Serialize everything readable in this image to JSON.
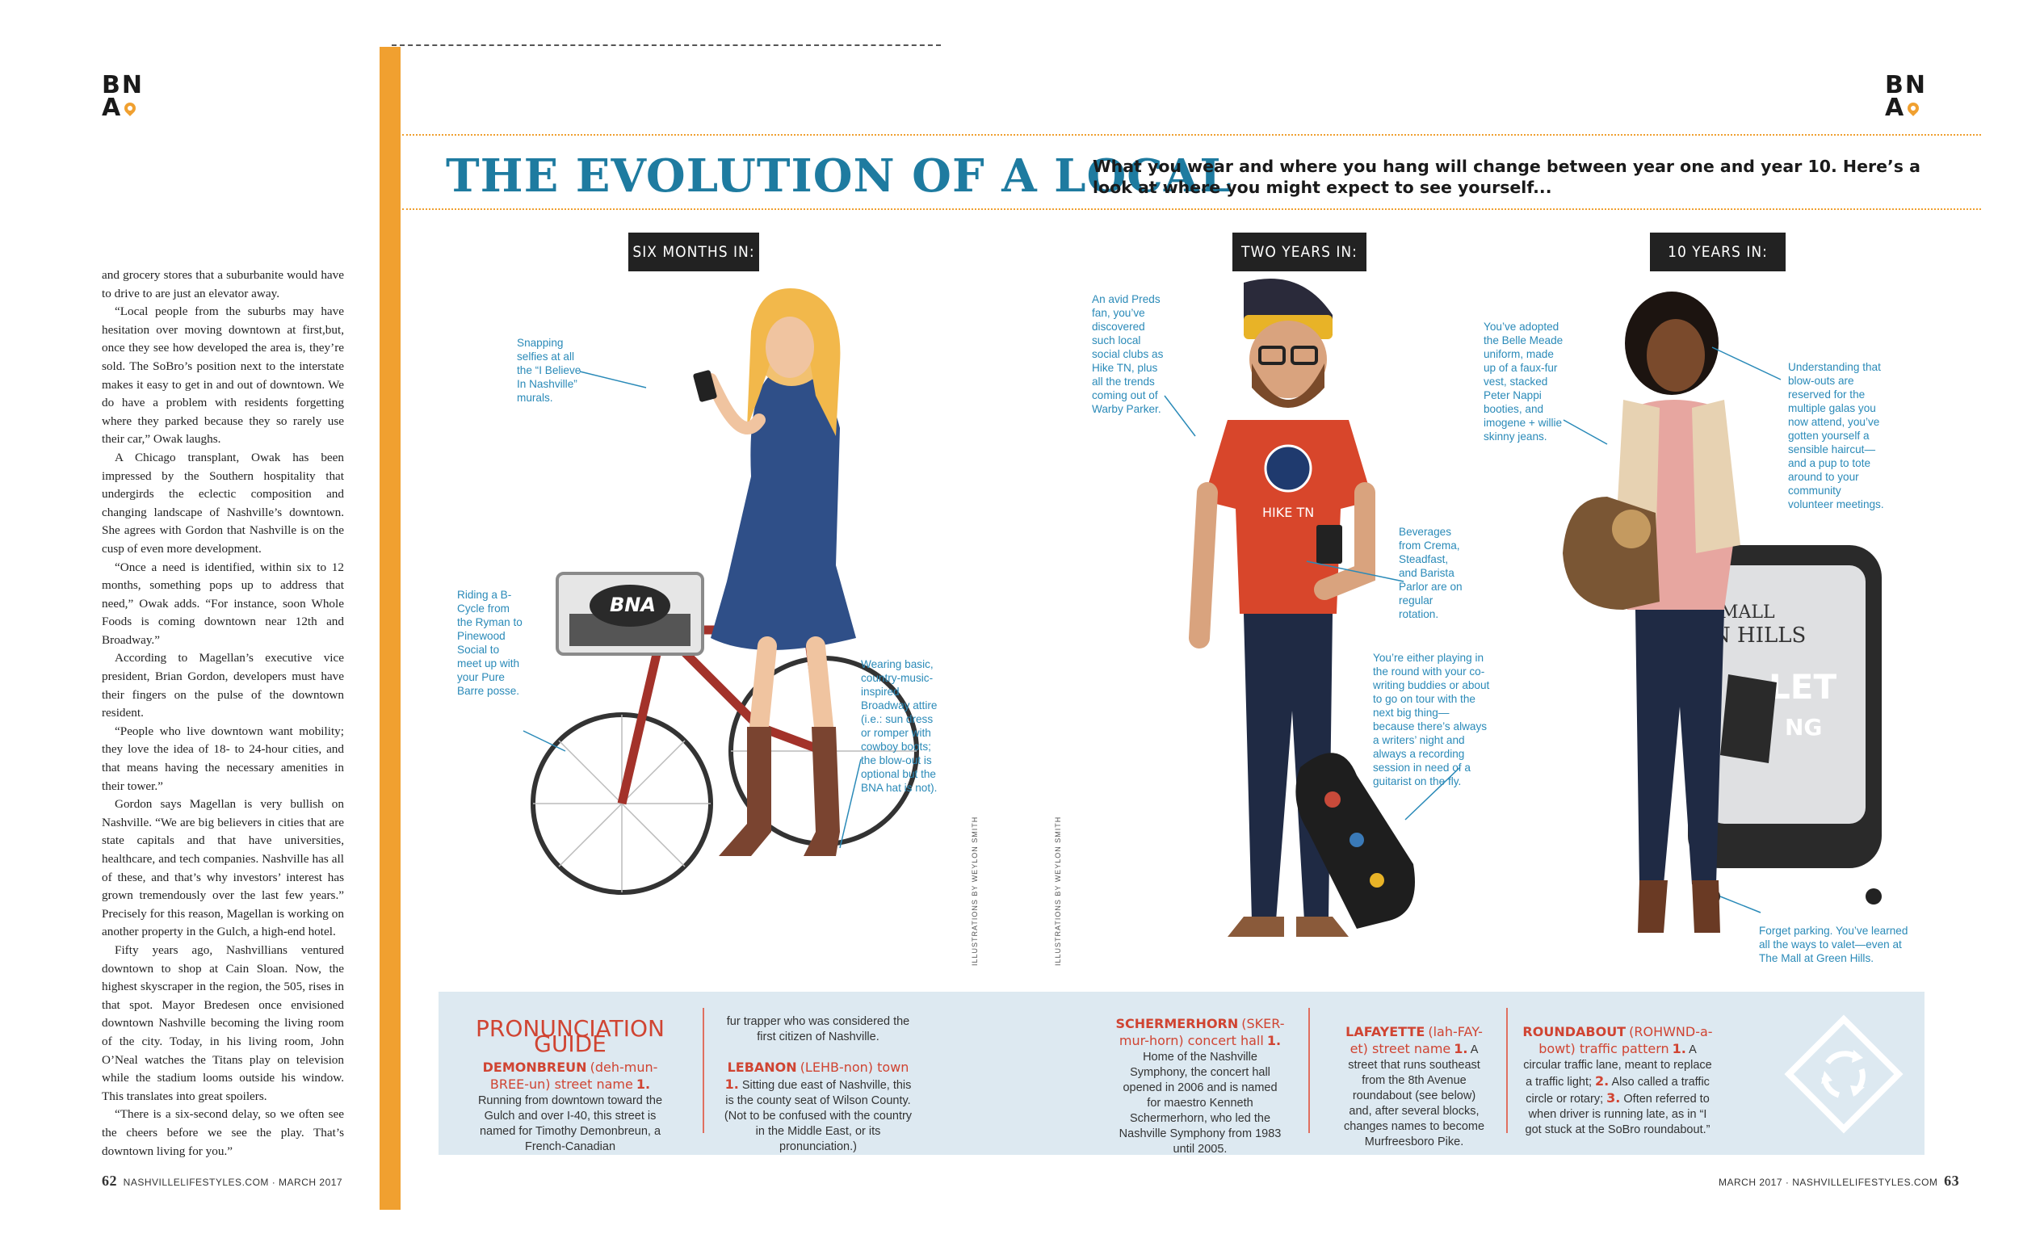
{
  "logo": {
    "line1": "BN",
    "line2": "A"
  },
  "article": {
    "paragraphs": [
      "and grocery stores that a suburbanite would have to drive to are just an elevator away.",
      "“Local people from the suburbs may have hesitation over moving downtown at first,but, once they see how developed the area is, they’re sold. The SoBro’s position next to the interstate makes it easy to get in and out of downtown. We do have a problem with residents forgetting where they parked because they so rarely use their car,” Owak laughs.",
      "A Chicago transplant, Owak has been impressed by the Southern hospitality that undergirds the eclectic composition and changing landscape of Nashville’s downtown. She agrees with Gordon that Nashville is on the cusp of even more development.",
      "“Once a need is identified, within six to 12 months, something pops up to address that need,” Owak adds. “For instance, soon Whole Foods is coming downtown near 12th and Broadway.”",
      "According to Magellan’s executive vice president, Brian Gordon, developers must have their fingers on the pulse of the downtown resident.",
      "“People who live downtown want mobility; they love the idea of 18- to 24-hour cities, and that means having the necessary amenities in their tower.”",
      "Gordon says Magellan is very bullish on Nashville. “We are big believers in cities that are state capitals and that have universities, healthcare, and tech companies. Nashville has all of these, and that’s why investors’ interest has grown tremendously over the last few years.” Precisely for this reason, Magellan is working on another property in the Gulch, a high-end hotel.",
      "Fifty years ago, Nashvillians ventured downtown to shop at Cain Sloan. Now, the highest skyscraper in the region, the 505, rises in that spot. Mayor Bredesen once envisioned downtown Nashville becoming the living room of the city. Today, in his living room, John O’Neal watches the Titans play on television while the stadium looms outside his window. This translates into great spoilers.",
      "“There is a six-second delay, so we often see the cheers before we see the play. That’s downtown living for you.”"
    ]
  },
  "folio_left": {
    "num": "62",
    "text": "NASHVILLELIFESTYLES.COM · MARCH 2017"
  },
  "folio_right": {
    "num": "63",
    "text": "MARCH 2017 · NASHVILLELIFESTYLES.COM"
  },
  "feature": {
    "title": "THE EVOLUTION OF A LOCAL",
    "subtitle": "What you wear and where you hang will change between year one and year 10.  Here’s a look at where you might expect to see yourself..."
  },
  "stages": [
    "SIX MONTHS IN:",
    "TWO YEARS IN:",
    "10 YEARS IN:"
  ],
  "callouts": {
    "selfies": "Snapping selfies at all the “I Believe In Nashville” murals.",
    "bcycle": "Riding a B-Cycle from the Ryman to Pinewood Social to meet up with your Pure Barre posse.",
    "broadway": "Wearing basic, country-music-inspired Broadway attire (i.e.: sun dress or romper with cowboy boots; the blow-out is optional but the BNA hat is not).",
    "preds": "An avid Preds fan, you’ve discovered such local social clubs as Hike TN, plus all the trends coming out of Warby Parker.",
    "beverages": "Beverages from Crema, Steadfast, and Barista Parlor are on regular rotation.",
    "playing": "You’re either playing in the round with your co-writing buddies or about to go on tour with the next big thing—because there’s always a writers’ night and always a recording session in need of a guitarist on the fly.",
    "bellemeade": "You’ve adopted the Belle Meade uniform, made up of a faux-fur vest, stacked Peter Nappi booties, and imogene + willie skinny jeans.",
    "blowouts": "Understanding that blow-outs are reserved for the multiple galas you now attend, you’ve gotten yourself a sensible haircut—and a pup to tote around to your community volunteer meetings.",
    "parking": "Forget parking. You’ve learned all the ways to valet—even at The Mall at Green Hills."
  },
  "illustration_text": {
    "hat": "BNA",
    "shirt": "HIKE TN",
    "sign_line1": "MALL",
    "sign_line2": "N HILLS",
    "sign_line3": "LET",
    "sign_line4": "NG"
  },
  "credit": "ILLUSTRATIONS BY WEYLON SMITH",
  "guide": {
    "heading": "PRONUNCIATION GUIDE",
    "demonbreun": {
      "word": "DEMONBREUN",
      "pron": "(deh-mun-BREE-un) street name",
      "def": "Running from downtown toward the Gulch and over I-40, this street is named for Timothy Demonbreun, a French-Canadian"
    },
    "demonbreun_cont": "fur trapper who was considered the first citizen of Nashville.",
    "lebanon": {
      "word": "LEBANON",
      "pron": "(LEHB-non) town",
      "def": "Sitting due east of Nashville, this is the county seat of Wilson County. (Not to be confused with the country in the Middle East, or its pronunciation.)"
    },
    "schermerhorn": {
      "word": "SCHERMERHORN",
      "pron": "(SKER-mur-horn) concert hall",
      "def": "Home of the Nashville Symphony, the concert hall opened in 2006 and is named for maestro Kenneth Schermerhorn, who led the Nashville Symphony from 1983 until 2005."
    },
    "lafayette": {
      "word": "LAFAYETTE",
      "pron": "(lah-FAY-et) street name",
      "def": "A street that runs southeast from the 8th Avenue roundabout (see below) and, after several blocks, changes names to become Murfreesboro Pike."
    },
    "roundabout": {
      "word": "ROUNDABOUT",
      "pron": "(ROHWND-a-bowt) traffic pattern",
      "def1": "A circular traffic lane, meant to replace a traffic light;",
      "def2": "Also called a traffic circle or rotary;",
      "def3": "Often referred to when driver is running late, as in “I got stuck at the SoBro roundabout.”"
    }
  },
  "colors": {
    "accent_orange": "#f0a030",
    "title_blue": "#1e7ba0",
    "callout_blue": "#2a8ab8",
    "guide_red": "#d04432",
    "guide_bg": "#dde9f1"
  }
}
